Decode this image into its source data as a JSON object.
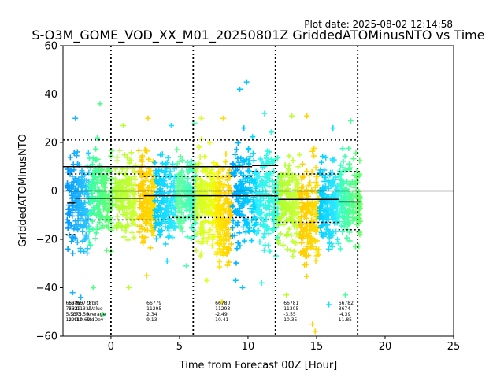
{
  "chart_data": {
    "type": "scatter",
    "title": "S-O3M_GOME_VOD_XX_M01_20250801Z GriddedATOMinusNTO vs Time",
    "subtitle": "Plot date: 2025-08-02 12:14:58",
    "xlabel": "Time from Forecast 00Z [Hour]",
    "ylabel": "GriddedATOMinusNTO",
    "xlim": [
      -3.5,
      25
    ],
    "ylim": [
      -60,
      60
    ],
    "xticks": [
      0,
      5,
      10,
      15,
      20,
      25
    ],
    "yticks": [
      -60,
      -40,
      -20,
      0,
      20,
      40,
      60
    ],
    "grid": false,
    "marker": "plus",
    "vertical_dashed_lines_x": [
      0,
      6,
      12,
      18
    ],
    "zero_line_y": 0,
    "series": [
      {
        "x_start": -3.2,
        "x_end": -1.6,
        "y_center": -5,
        "spread": 28,
        "color_from": "#0099ff",
        "color_to": "#33ccff",
        "outliers": [
          {
            "x": -2.6,
            "y": 30
          },
          {
            "x": -2.8,
            "y": -42
          },
          {
            "x": -2.2,
            "y": -44
          }
        ]
      },
      {
        "x_start": -1.6,
        "x_end": 0.1,
        "y_center": -2,
        "spread": 28,
        "color_from": "#33ffaa",
        "color_to": "#66ff66",
        "outliers": [
          {
            "x": -0.8,
            "y": 36
          },
          {
            "x": -0.6,
            "y": -51
          },
          {
            "x": -1.3,
            "y": -40
          }
        ]
      },
      {
        "x_start": 0.3,
        "x_end": 1.8,
        "y_center": -3,
        "spread": 25,
        "color_from": "#aaff33",
        "color_to": "#ccff33",
        "outliers": [
          {
            "x": 1.3,
            "y": -40
          },
          {
            "x": 0.9,
            "y": 27
          }
        ]
      },
      {
        "x_start": 2.0,
        "x_end": 3.2,
        "y_center": -4,
        "spread": 26,
        "color_from": "#ffcc00",
        "color_to": "#ffdd00",
        "outliers": [
          {
            "x": 2.6,
            "y": -35
          },
          {
            "x": 2.7,
            "y": 30
          }
        ]
      },
      {
        "x_start": 3.2,
        "x_end": 4.8,
        "y_center": -3,
        "spread": 25,
        "color_from": "#00ccff",
        "color_to": "#33eeff",
        "outliers": [
          {
            "x": 4.4,
            "y": 27
          },
          {
            "x": 4.1,
            "y": -29
          }
        ]
      },
      {
        "x_start": 4.8,
        "x_end": 6.2,
        "y_center": -2,
        "spread": 26,
        "color_from": "#66ff99",
        "color_to": "#33ffcc",
        "outliers": [
          {
            "x": 5.5,
            "y": -31
          },
          {
            "x": 6.1,
            "y": 28
          }
        ]
      },
      {
        "x_start": 6.2,
        "x_end": 7.6,
        "y_center": -4,
        "spread": 27,
        "color_from": "#ccff33",
        "color_to": "#eeff00",
        "outliers": [
          {
            "x": 6.6,
            "y": 30
          },
          {
            "x": 7.0,
            "y": -37
          }
        ]
      },
      {
        "x_start": 7.6,
        "x_end": 8.8,
        "y_center": -8,
        "spread": 30,
        "color_from": "#ffee00",
        "color_to": "#ffcc00",
        "outliers": [
          {
            "x": 8.1,
            "y": -46
          },
          {
            "x": 8.2,
            "y": 30
          }
        ]
      },
      {
        "x_start": 8.8,
        "x_end": 10.6,
        "y_center": -3,
        "spread": 32,
        "color_from": "#00aaff",
        "color_to": "#00ddff",
        "outliers": [
          {
            "x": 9.4,
            "y": 42
          },
          {
            "x": 9.9,
            "y": 45
          },
          {
            "x": 9.1,
            "y": -37
          },
          {
            "x": 9.6,
            "y": -40
          }
        ]
      },
      {
        "x_start": 10.6,
        "x_end": 12.2,
        "y_center": -3,
        "spread": 30,
        "color_from": "#33eeff",
        "color_to": "#33ffcc",
        "outliers": [
          {
            "x": 11.2,
            "y": 32
          },
          {
            "x": 11.0,
            "y": -38
          }
        ]
      },
      {
        "x_start": 12.2,
        "x_end": 13.8,
        "y_center": -5,
        "spread": 27,
        "color_from": "#aaff33",
        "color_to": "#ccff33",
        "outliers": [
          {
            "x": 12.8,
            "y": -43
          },
          {
            "x": 13.2,
            "y": 31
          }
        ]
      },
      {
        "x_start": 13.8,
        "x_end": 15.2,
        "y_center": -10,
        "spread": 30,
        "color_from": "#ffcc00",
        "color_to": "#ffdd00",
        "outliers": [
          {
            "x": 14.3,
            "y": 31
          },
          {
            "x": 14.7,
            "y": -55
          },
          {
            "x": 14.9,
            "y": -58
          }
        ]
      },
      {
        "x_start": 15.2,
        "x_end": 16.6,
        "y_center": -5,
        "spread": 27,
        "color_from": "#00ccff",
        "color_to": "#33eeff",
        "outliers": [
          {
            "x": 15.9,
            "y": -47
          },
          {
            "x": 16.2,
            "y": 26
          }
        ]
      },
      {
        "x_start": 16.6,
        "x_end": 18.2,
        "y_center": -4,
        "spread": 27,
        "color_from": "#33ffcc",
        "color_to": "#66ff66",
        "outliers": [
          {
            "x": 17.1,
            "y": -43
          },
          {
            "x": 17.5,
            "y": 29
          }
        ]
      }
    ],
    "solid_step_lines": [
      {
        "segments": [
          {
            "x1": -3.5,
            "x2": 10.3,
            "y": 10
          },
          {
            "x1": 10.3,
            "x2": 12.2,
            "y": 10.5
          }
        ]
      },
      {
        "segments": [
          {
            "x1": -3.2,
            "x2": -2.6,
            "y": -5
          },
          {
            "x1": -2.6,
            "x2": 2.4,
            "y": -3
          },
          {
            "x1": 2.4,
            "x2": 12.2,
            "y": -2
          },
          {
            "x1": 12.2,
            "x2": 16.6,
            "y": -3.5
          },
          {
            "x1": 16.6,
            "x2": 18.2,
            "y": -4.5
          }
        ]
      }
    ],
    "dotted_step_lines": [
      {
        "segments": [
          {
            "x1": -3.5,
            "x2": 18.0,
            "y": 21
          }
        ]
      },
      {
        "segments": [
          {
            "x1": -3.2,
            "x2": 2.4,
            "y": 7
          },
          {
            "x1": 2.4,
            "x2": 10.3,
            "y": 6
          },
          {
            "x1": 10.3,
            "x2": 12.2,
            "y": 8
          },
          {
            "x1": 12.2,
            "x2": 16.6,
            "y": 7
          },
          {
            "x1": 16.6,
            "x2": 18.2,
            "y": 8
          }
        ]
      },
      {
        "segments": [
          {
            "x1": -1.8,
            "x2": 4.2,
            "y": -12
          },
          {
            "x1": 4.2,
            "x2": 10.3,
            "y": -11
          },
          {
            "x1": 10.3,
            "x2": 12.2,
            "y": -12
          },
          {
            "x1": 12.2,
            "x2": 16.6,
            "y": -13
          },
          {
            "x1": 16.6,
            "x2": 18.2,
            "y": -16
          }
        ]
      },
      {
        "segments": [
          {
            "x1": -3.3,
            "x2": -2.6,
            "y": -18
          }
        ]
      }
    ],
    "stat_blocks": [
      {
        "x": -3.3,
        "lines": [
          "66787",
          "7532",
          "5.73",
          "12.41"
        ]
      },
      {
        "x": -3.1,
        "lines": [
          "66787",
          "7532",
          "-5.73",
          "12.12"
        ]
      },
      {
        "x": -2.9,
        "lines": [
          "",
          "",
          "9.75",
          ""
        ]
      },
      {
        "x": -1.8,
        "lines": [
          "Orbit",
          "NValue",
          "Average",
          "StdDev"
        ]
      },
      {
        "x": -2.5,
        "lines": [
          "66778",
          "11317",
          "-3.56",
          "10.69"
        ]
      },
      {
        "x": 2.6,
        "lines": [
          "66779",
          "11295",
          "2.34",
          "9.13"
        ]
      },
      {
        "x": 7.6,
        "lines": [
          "66780",
          "11293",
          "-2.49",
          "10.41"
        ]
      },
      {
        "x": 12.6,
        "lines": [
          "66781",
          "11305",
          "-3.55",
          "10.35"
        ]
      },
      {
        "x": 16.6,
        "lines": [
          "66782",
          "3674",
          "-4.39",
          "11.85"
        ]
      }
    ]
  }
}
